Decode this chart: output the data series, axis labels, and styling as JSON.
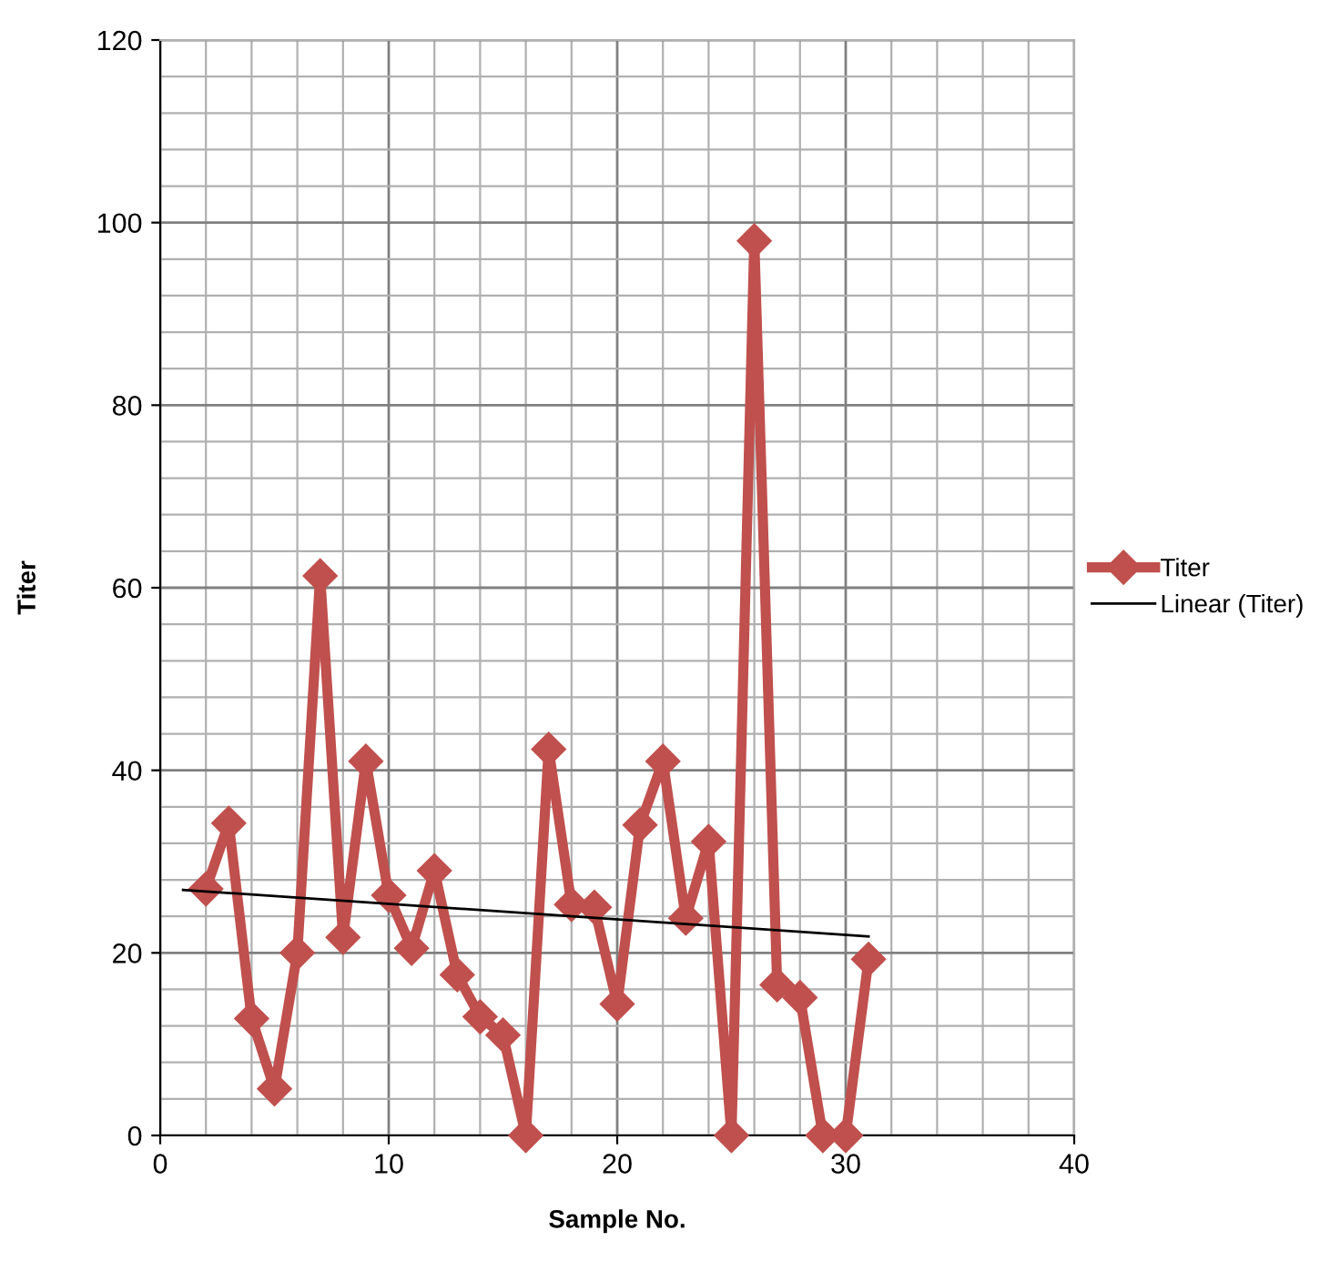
{
  "chart_data": {
    "type": "line",
    "xlabel": "Sample No.",
    "ylabel": "Titer",
    "xlim": [
      0,
      40
    ],
    "xticks": [
      0,
      10,
      20,
      30,
      40
    ],
    "ylim": [
      0,
      120
    ],
    "yticks": [
      0,
      20,
      40,
      60,
      80,
      100,
      120
    ],
    "grid": true,
    "legend": "right",
    "marker": "diamond",
    "line_style": "solid",
    "series": [
      {
        "name": "Titer",
        "color": "#c0504d",
        "x": [
          2,
          3,
          4,
          5,
          6,
          7,
          8,
          9,
          10,
          11,
          12,
          13,
          14,
          15,
          16,
          17,
          18,
          19,
          20,
          21,
          22,
          23,
          24,
          25,
          26,
          27,
          28,
          29,
          30,
          31
        ],
        "values": [
          27,
          34.2,
          12.8,
          5.1,
          20,
          61.3,
          21.7,
          41,
          26.3,
          20.5,
          29,
          17.6,
          13,
          11,
          0,
          42.3,
          25.3,
          25,
          14.4,
          34,
          41,
          23.8,
          32.2,
          0,
          98,
          16.5,
          15.1,
          0,
          0,
          19.3
        ]
      },
      {
        "name": "Linear (Titer)",
        "color": "#000000",
        "type": "line",
        "marker": "none",
        "x": [
          1,
          31
        ],
        "values": [
          26.9,
          21.8
        ]
      }
    ]
  }
}
